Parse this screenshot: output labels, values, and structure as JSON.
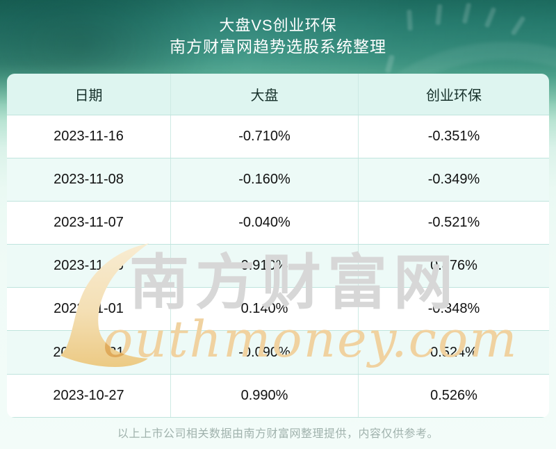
{
  "header": {
    "title": "大盘VS创业环保",
    "subtitle": "南方财富网趋势选股系统整理"
  },
  "chart_data": {
    "type": "table",
    "title": "大盘VS创业环保",
    "subtitle": "南方财富网趋势选股系统整理",
    "columns": [
      "日期",
      "大盘",
      "创业环保"
    ],
    "rows": [
      [
        "2023-11-16",
        "-0.710%",
        "-0.351%"
      ],
      [
        "2023-11-08",
        "-0.160%",
        "-0.349%"
      ],
      [
        "2023-11-07",
        "-0.040%",
        "-0.521%"
      ],
      [
        "2023-11-06",
        "0.910%",
        "0.876%"
      ],
      [
        "2023-11-01",
        "0.140%",
        "-0.348%"
      ],
      [
        "2023-10-31",
        "-0.090%",
        "0.524%"
      ],
      [
        "2023-10-27",
        "0.990%",
        "0.526%"
      ]
    ]
  },
  "watermark": {
    "brand_cn": "南方财富网",
    "brand_en": "outhmoney.com",
    "swoosh_icon": "s-swoosh-icon"
  },
  "footer": {
    "disclaimer": "以上上市公司相关数据由南方财富网整理提供，内容仅供参考。"
  },
  "colors": {
    "hero_teal": "#2a8174",
    "table_header_bg": "#def5f0",
    "row_bg": "#ffffff",
    "row_alt_bg": "#edfaf7",
    "table_border": "#bfe4dd",
    "watermark_gray": "#d7d7d7",
    "watermark_gold": "#f0d2a0",
    "swoosh_cream_top": "#f8ecd2",
    "swoosh_cream_bottom": "#ecca84",
    "title_text": "#ffffff",
    "cell_text": "#111111",
    "footer_text": "#a0b2ad"
  }
}
